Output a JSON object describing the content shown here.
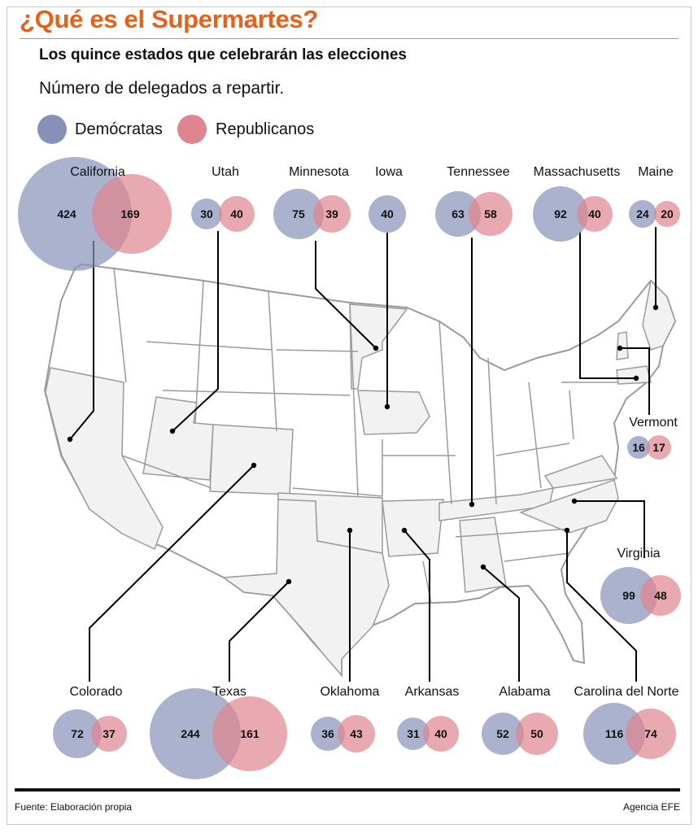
{
  "header": {
    "title": "¿Qué es el Supermartes?",
    "subtitle": "Los quince estados que celebrarán las elecciones",
    "description": "Número de delegados a repartir."
  },
  "legend": [
    {
      "label": "Demócratas",
      "color": "#8791b8"
    },
    {
      "label": "Republicanos",
      "color": "#e0848e"
    }
  ],
  "colors": {
    "democrats": "#8791b8",
    "republicans": "#e0848e",
    "map_selected": "#f2f2f2",
    "map_other": "#ffffff",
    "map_border": "#9b9b9b",
    "title": "#e8611a"
  },
  "states": [
    {
      "name": "California",
      "dem": 424,
      "rep": 169
    },
    {
      "name": "Utah",
      "dem": 30,
      "rep": 40
    },
    {
      "name": "Minnesota",
      "dem": 75,
      "rep": 39
    },
    {
      "name": "Iowa",
      "dem": 40
    },
    {
      "name": "Tennessee",
      "dem": 63,
      "rep": 58
    },
    {
      "name": "Massachusetts",
      "dem": 92,
      "rep": 40
    },
    {
      "name": "Maine",
      "dem": 24,
      "rep": 20
    },
    {
      "name": "Vermont",
      "dem": 16,
      "rep": 17
    },
    {
      "name": "Virginia",
      "dem": 99,
      "rep": 48
    },
    {
      "name": "Colorado",
      "dem": 72,
      "rep": 37
    },
    {
      "name": "Texas",
      "dem": 244,
      "rep": 161
    },
    {
      "name": "Oklahoma",
      "dem": 36,
      "rep": 43
    },
    {
      "name": "Arkansas",
      "dem": 31,
      "rep": 40
    },
    {
      "name": "Alabama",
      "dem": 52,
      "rep": 50
    },
    {
      "name": "Carolina del Norte",
      "dem": 116,
      "rep": 74
    }
  ],
  "footer": {
    "source": "Fuente: Elaboración propia",
    "agency": "Agencia EFE"
  }
}
